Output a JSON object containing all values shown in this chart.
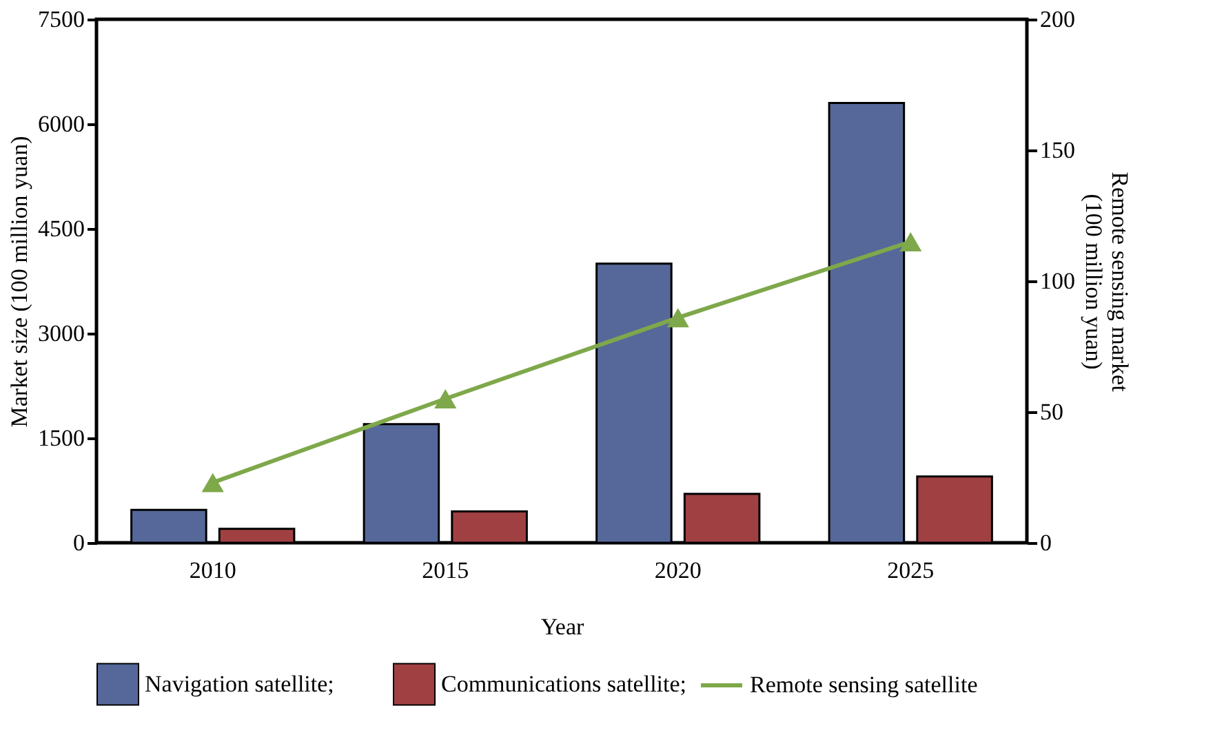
{
  "chart_data": {
    "type": "bar",
    "categories": [
      "2010",
      "2015",
      "2020",
      "2025"
    ],
    "xlabel": "Year",
    "ylabel": "Market size (100 million yuan)",
    "y2label": "Remote sensing market (100 million yuan)",
    "ylim": [
      0,
      7500
    ],
    "yticks": [
      0,
      1500,
      3000,
      4500,
      6000,
      7500
    ],
    "y2lim": [
      0,
      200
    ],
    "y2ticks": [
      0,
      50,
      100,
      150,
      200
    ],
    "series": [
      {
        "name": "Navigation satellite;",
        "color": "#56689a",
        "values": [
          470,
          1700,
          4000,
          6300
        ]
      },
      {
        "name": "Communications satellite;",
        "color": "#a04042",
        "values": [
          200,
          450,
          700,
          950
        ]
      },
      {
        "name": "Remote sensing satellite",
        "type": "line",
        "axis": "y2",
        "marker": "triangle",
        "color": "#7ea84a",
        "values": [
          23,
          55,
          86,
          115
        ]
      }
    ],
    "grid": false,
    "legend": "bottom"
  }
}
